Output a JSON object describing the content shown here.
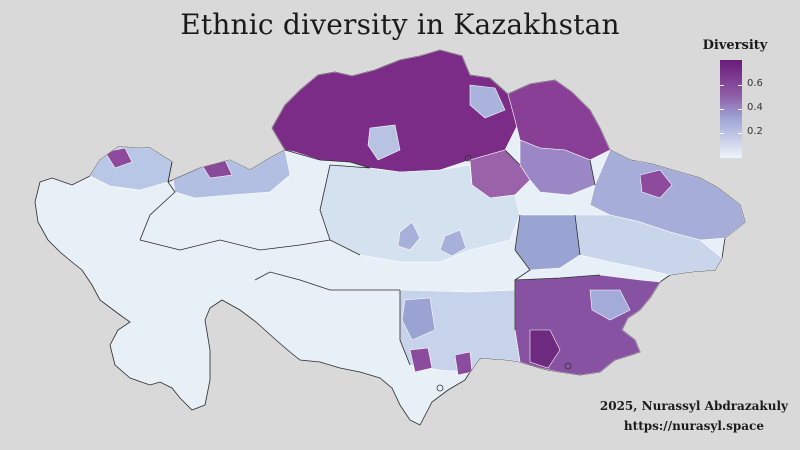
{
  "title": "Ethnic diversity in Kazakhstan",
  "legend": {
    "title": "Diversity",
    "ticks": [
      "0.6",
      "0.4",
      "0.2"
    ],
    "colors": {
      "high": "#6a1b7a",
      "mid": "#9fa6d6",
      "low": "#e8f0f7"
    }
  },
  "credit": {
    "author": "2025, Nurassyl Abdrazakuly",
    "url": "https://nurasyl.space"
  },
  "palette": {
    "background": "#d9d9d9",
    "border": "#2a2a2a",
    "inner_border": "#ffffff"
  }
}
